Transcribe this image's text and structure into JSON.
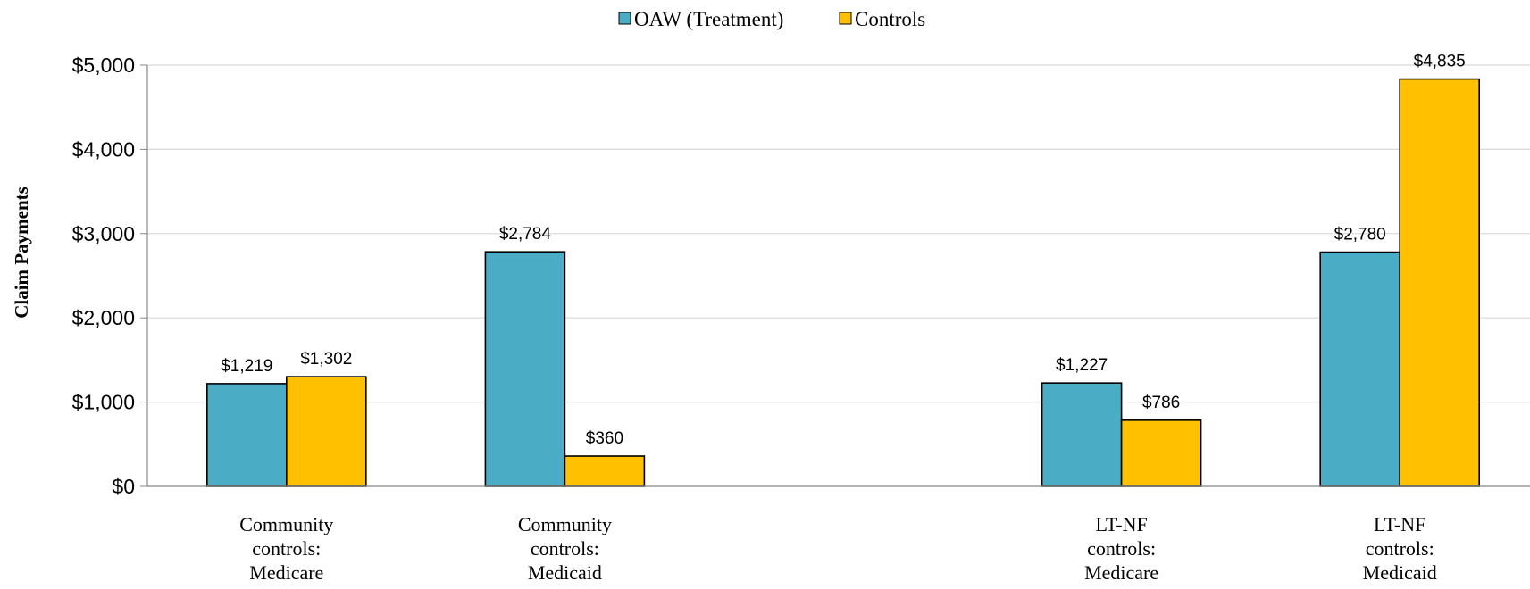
{
  "chart_data": {
    "type": "bar",
    "categories": [
      [
        "Community",
        "controls:",
        "Medicare"
      ],
      [
        "Community",
        "controls:",
        "Medicaid"
      ],
      [
        "",
        "",
        ""
      ],
      [
        "LT-NF",
        "controls:",
        "Medicare"
      ],
      [
        "LT-NF",
        "controls:",
        "Medicaid"
      ]
    ],
    "series": [
      {
        "name": "OAW (Treatment)",
        "color": "#4BACC6",
        "values": [
          1219,
          2784,
          null,
          1227,
          2780
        ],
        "labels": [
          "$1,219",
          "$2,784",
          "",
          "$1,227",
          "$2,780"
        ]
      },
      {
        "name": "Controls",
        "color": "#FFC000",
        "values": [
          1302,
          360,
          null,
          786,
          4835
        ],
        "labels": [
          "$1,302",
          "$360",
          "",
          "$786",
          "$4,835"
        ]
      }
    ],
    "ylabel": "Claim Payments",
    "xlabel": "",
    "ylim": [
      0,
      5000
    ],
    "yticks": [
      0,
      1000,
      2000,
      3000,
      4000,
      5000
    ],
    "ytick_labels": [
      "$0",
      "$1,000",
      "$2,000",
      "$3,000",
      "$4,000",
      "$5,000"
    ],
    "grid": true,
    "legend_position": "top-center"
  }
}
